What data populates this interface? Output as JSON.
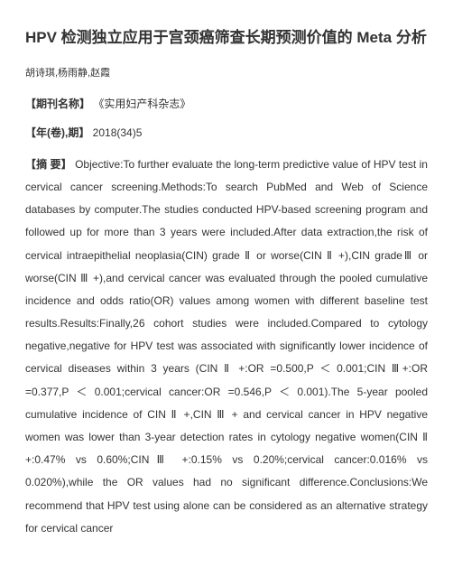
{
  "title": "HPV 检测独立应用于宫颈癌筛查长期预测价值的 Meta 分析",
  "authors": "胡诗琪,杨雨静,赵霞",
  "journal": {
    "label": "【期刊名称】",
    "value": "《实用妇产科杂志》"
  },
  "issue": {
    "label": "【年(卷),期】",
    "value": "2018(34)5"
  },
  "abstract": {
    "label": "【摘 要】",
    "value": "Objective:To further evaluate the long-term predictive value of HPV test in cervical cancer screening.Methods:To search PubMed and Web of Science databases by computer.The studies conducted HPV-based screening program and followed up for more than 3 years were included.After data extraction,the risk of cervical intraepithelial neoplasia(CIN) grade Ⅱ or worse(CIN Ⅱ +),CIN gradeⅢ or worse(CIN Ⅲ +),and cervical cancer was evaluated through the pooled cumulative incidence and odds ratio(OR) values among women with different baseline test results.Results:Finally,26 cohort studies were included.Compared to cytology negative,negative for HPV test was associated with significantly lower incidence of cervical diseases within 3 years (CIN Ⅱ +:OR =0.500,P ＜ 0.001;CIN Ⅲ+:OR =0.377,P ＜ 0.001;cervical cancer:OR =0.546,P ＜ 0.001).The 5-year pooled cumulative incidence of CIN Ⅱ +,CIN Ⅲ + and cervical cancer in HPV negative women was lower than 3-year detection rates in cytology negative women(CIN Ⅱ +:0.47% vs 0.60%;CINⅢ +:0.15% vs 0.20%;cervical cancer:0.016% vs 0.020%),while the OR values had no significant difference.Conclusions:We recommend that HPV test using alone can be considered as an alternative strategy for cervical cancer"
  },
  "font_sizes": {
    "title": 17,
    "authors": 11,
    "field": 12,
    "abstract": 12
  },
  "colors": {
    "text": "#333333",
    "background": "#ffffff"
  }
}
